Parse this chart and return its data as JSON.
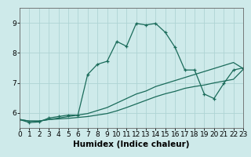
{
  "title": "",
  "xlabel": "Humidex (Indice chaleur)",
  "background_color": "#ceeaea",
  "grid_color": "#aed4d4",
  "line_color": "#1a6b5a",
  "xlim": [
    0,
    23
  ],
  "ylim": [
    5.5,
    9.5
  ],
  "yticks": [
    6,
    7,
    8,
    9
  ],
  "xticks": [
    0,
    1,
    2,
    3,
    4,
    5,
    6,
    7,
    8,
    9,
    10,
    11,
    12,
    13,
    14,
    15,
    16,
    17,
    18,
    19,
    20,
    21,
    22,
    23
  ],
  "line1_x": [
    0,
    1,
    2,
    3,
    4,
    5,
    6,
    7,
    8,
    9,
    10,
    11,
    12,
    13,
    14,
    15,
    16,
    17,
    18,
    19,
    20,
    21,
    22,
    23
  ],
  "line1_y": [
    5.78,
    5.68,
    5.7,
    5.83,
    5.88,
    5.93,
    5.93,
    7.28,
    7.62,
    7.72,
    8.38,
    8.22,
    8.98,
    8.93,
    8.98,
    8.68,
    8.18,
    7.43,
    7.43,
    6.63,
    6.48,
    6.98,
    7.43,
    7.5
  ],
  "line2_x": [
    0,
    1,
    2,
    3,
    4,
    5,
    6,
    7,
    8,
    9,
    10,
    11,
    12,
    13,
    14,
    15,
    16,
    17,
    18,
    19,
    20,
    21,
    22,
    23
  ],
  "line2_y": [
    5.78,
    5.73,
    5.73,
    5.78,
    5.83,
    5.88,
    5.93,
    5.98,
    6.08,
    6.18,
    6.33,
    6.48,
    6.63,
    6.73,
    6.88,
    6.98,
    7.08,
    7.18,
    7.28,
    7.38,
    7.48,
    7.58,
    7.68,
    7.48
  ],
  "line3_x": [
    0,
    1,
    2,
    3,
    4,
    5,
    6,
    7,
    8,
    9,
    10,
    11,
    12,
    13,
    14,
    15,
    16,
    17,
    18,
    19,
    20,
    21,
    22,
    23
  ],
  "line3_y": [
    5.78,
    5.73,
    5.73,
    5.78,
    5.8,
    5.82,
    5.85,
    5.88,
    5.93,
    5.98,
    6.07,
    6.18,
    6.3,
    6.42,
    6.54,
    6.64,
    6.72,
    6.82,
    6.88,
    6.93,
    7.0,
    7.06,
    7.12,
    7.45
  ],
  "linewidth": 0.9,
  "tick_fontsize": 6.5,
  "label_fontsize": 7.5
}
